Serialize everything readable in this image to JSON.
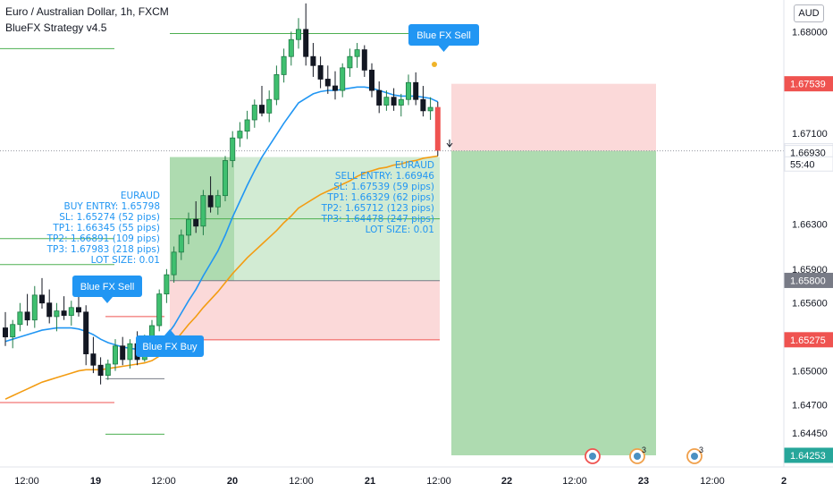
{
  "header": {
    "symbol_line": "Euro / Australian Dollar, 1h, FXCM",
    "strategy_line": "BlueFX Strategy v4.5"
  },
  "currency_badge": "AUD",
  "colors": {
    "bull": "#26a69a",
    "bear": "#ef5350",
    "bull_fill": "#26a69a",
    "ema_fast": "#2196f3",
    "ema_slow": "#f39c12",
    "signal_blue": "#2196f3",
    "tp_green": "#4caf50",
    "sl_red": "#ef5350",
    "zone_green": "rgba(76,175,80,0.35)",
    "zone_red": "rgba(239,83,80,0.22)",
    "text_blue": "#2196f3"
  },
  "chart_data": {
    "type": "candlestick",
    "ylim": [
      1.6415,
      1.6828
    ],
    "y_ticks": [
      "1.68000",
      "1.67100",
      "1.66300",
      "1.65900",
      "1.65600",
      "1.65000",
      "1.64700",
      "1.64450"
    ],
    "x_ticks": [
      "12:00",
      "19",
      "12:00",
      "20",
      "12:00",
      "21",
      "12:00",
      "22",
      "12:00",
      "23",
      "12:00",
      "2"
    ],
    "price_tags": [
      {
        "label": "1.67539",
        "value": 1.67539,
        "color": "#ef5350"
      },
      {
        "label": "1.66946",
        "value": 1.66946,
        "color": "#131722",
        "background": "#ffffff"
      },
      {
        "label": "1.66930",
        "value": 1.6693,
        "color": "#131722",
        "background": "#ffffff"
      },
      {
        "label": "55:40",
        "value": 1.6683,
        "color": "#131722",
        "background": "#ffffff"
      },
      {
        "label": "1.65800",
        "value": 1.658,
        "color": "#787b86"
      },
      {
        "label": "1.65275",
        "value": 1.65275,
        "color": "#ef5350"
      },
      {
        "label": "1.64253",
        "value": 1.64253,
        "color": "#26a69a"
      }
    ],
    "candles": [
      [
        1.6538,
        1.6552,
        1.6522,
        1.653
      ],
      [
        1.653,
        1.6545,
        1.652,
        1.6541
      ],
      [
        1.6541,
        1.656,
        1.6535,
        1.6552
      ],
      [
        1.6552,
        1.6568,
        1.654,
        1.6545
      ],
      [
        1.6545,
        1.6575,
        1.6538,
        1.6567
      ],
      [
        1.6567,
        1.6582,
        1.6555,
        1.656
      ],
      [
        1.656,
        1.6572,
        1.6542,
        1.6548
      ],
      [
        1.6548,
        1.656,
        1.6535,
        1.6553
      ],
      [
        1.6553,
        1.6566,
        1.6545,
        1.6549
      ],
      [
        1.6549,
        1.6562,
        1.654,
        1.6556
      ],
      [
        1.6556,
        1.657,
        1.6548,
        1.6552
      ],
      [
        1.6552,
        1.6558,
        1.6505,
        1.6515
      ],
      [
        1.6515,
        1.653,
        1.6498,
        1.6505
      ],
      [
        1.6505,
        1.6512,
        1.6488,
        1.6496
      ],
      [
        1.6496,
        1.651,
        1.6492,
        1.6506
      ],
      [
        1.6506,
        1.6528,
        1.65,
        1.6522
      ],
      [
        1.6522,
        1.653,
        1.6505,
        1.651
      ],
      [
        1.651,
        1.6528,
        1.6502,
        1.6524
      ],
      [
        1.6524,
        1.6535,
        1.6505,
        1.651
      ],
      [
        1.651,
        1.6532,
        1.6508,
        1.6528
      ],
      [
        1.6528,
        1.6545,
        1.652,
        1.654
      ],
      [
        1.654,
        1.6572,
        1.6535,
        1.6568
      ],
      [
        1.6568,
        1.659,
        1.656,
        1.6585
      ],
      [
        1.6585,
        1.661,
        1.6578,
        1.6605
      ],
      [
        1.6605,
        1.6625,
        1.6598,
        1.662
      ],
      [
        1.662,
        1.664,
        1.6612,
        1.6634
      ],
      [
        1.6634,
        1.665,
        1.6622,
        1.6628
      ],
      [
        1.6628,
        1.666,
        1.662,
        1.6655
      ],
      [
        1.6655,
        1.6672,
        1.664,
        1.6645
      ],
      [
        1.6645,
        1.666,
        1.6638,
        1.6655
      ],
      [
        1.6655,
        1.669,
        1.665,
        1.6686
      ],
      [
        1.6686,
        1.6712,
        1.668,
        1.6706
      ],
      [
        1.6706,
        1.672,
        1.6698,
        1.6712
      ],
      [
        1.6712,
        1.673,
        1.6705,
        1.6722
      ],
      [
        1.6722,
        1.674,
        1.6715,
        1.6735
      ],
      [
        1.6735,
        1.6752,
        1.6725,
        1.6728
      ],
      [
        1.6728,
        1.6748,
        1.672,
        1.674
      ],
      [
        1.674,
        1.677,
        1.6735,
        1.6762
      ],
      [
        1.6762,
        1.6785,
        1.6755,
        1.6778
      ],
      [
        1.6778,
        1.68,
        1.677,
        1.6793
      ],
      [
        1.6793,
        1.6812,
        1.6785,
        1.6802
      ],
      [
        1.6802,
        1.6825,
        1.677,
        1.6778
      ],
      [
        1.6778,
        1.679,
        1.676,
        1.677
      ],
      [
        1.677,
        1.6778,
        1.675,
        1.6758
      ],
      [
        1.6758,
        1.677,
        1.6745,
        1.6752
      ],
      [
        1.6752,
        1.6765,
        1.674,
        1.6748
      ],
      [
        1.6748,
        1.6772,
        1.6742,
        1.6768
      ],
      [
        1.6768,
        1.6785,
        1.676,
        1.6778
      ],
      [
        1.6778,
        1.679,
        1.6768,
        1.6784
      ],
      [
        1.6784,
        1.6788,
        1.676,
        1.6766
      ],
      [
        1.6766,
        1.6772,
        1.6742,
        1.6748
      ],
      [
        1.6748,
        1.6756,
        1.6728,
        1.6735
      ],
      [
        1.6735,
        1.6748,
        1.673,
        1.6742
      ],
      [
        1.6742,
        1.675,
        1.673,
        1.6735
      ],
      [
        1.6735,
        1.6745,
        1.6725,
        1.674
      ],
      [
        1.674,
        1.6762,
        1.6735,
        1.6755
      ],
      [
        1.6755,
        1.6764,
        1.6735,
        1.674
      ],
      [
        1.674,
        1.6752,
        1.6725,
        1.673
      ],
      [
        1.673,
        1.6742,
        1.6722,
        1.6733
      ],
      [
        1.6733,
        1.6738,
        1.669,
        1.6695
      ]
    ],
    "ema_fast": [
      [
        1.6526,
        1.6528,
        1.653,
        1.6532,
        1.6534,
        1.6536,
        1.6537,
        1.6538,
        1.6538,
        1.6538,
        1.6537,
        1.6535,
        1.6532,
        1.6528,
        1.6525,
        1.6523,
        1.6521,
        1.652,
        1.6519,
        1.6519,
        1.6521,
        1.6525,
        1.6531,
        1.654,
        1.6551,
        1.6562,
        1.6572,
        1.6584,
        1.6595,
        1.6606,
        1.662,
        1.6636,
        1.665,
        1.6664,
        1.6677,
        1.6689,
        1.6699,
        1.6709,
        1.6719,
        1.6728,
        1.6737,
        1.6741,
        1.6745,
        1.6747,
        1.6748,
        1.6748,
        1.6749,
        1.675,
        1.6751,
        1.6751,
        1.675,
        1.6748,
        1.6746,
        1.6744,
        1.6743,
        1.6743,
        1.6743,
        1.6742,
        1.6741,
        1.6738
      ]
    ],
    "ema_slow": [
      [
        1.6475,
        1.6478,
        1.6481,
        1.6484,
        1.6487,
        1.649,
        1.6492,
        1.6494,
        1.6496,
        1.6498,
        1.65,
        1.6501,
        1.6501,
        1.6501,
        1.6502,
        1.6503,
        1.6504,
        1.6505,
        1.6506,
        1.6507,
        1.6509,
        1.6513,
        1.6518,
        1.6525,
        1.6533,
        1.6541,
        1.6548,
        1.6556,
        1.6563,
        1.657,
        1.6578,
        1.6586,
        1.6593,
        1.66,
        1.6606,
        1.6612,
        1.6618,
        1.6624,
        1.6631,
        1.6637,
        1.6644,
        1.6648,
        1.6652,
        1.6656,
        1.6659,
        1.6662,
        1.6665,
        1.6668,
        1.6672,
        1.6675,
        1.6677,
        1.6679,
        1.668,
        1.6682,
        1.6683,
        1.6685,
        1.6686,
        1.6688,
        1.6689,
        1.669
      ]
    ],
    "trades": [
      {
        "entry": 1.65798,
        "sl": 1.65274,
        "tp1": 1.66345,
        "tp2": 1.66891,
        "tp3": 1.67983,
        "text": [
          "EURAUD",
          "BUY ENTRY: 1.65798",
          "SL: 1.65274 (52 pips)",
          "TP1: 1.66345 (55 pips)",
          "TP2: 1.66891 (109 pips)",
          "TP3: 1.67983 (218 pips)",
          "LOT SIZE: 0.01"
        ]
      },
      {
        "entry": 1.66946,
        "sl": 1.67539,
        "tp1": 1.66329,
        "tp2": 1.65712,
        "tp3": 1.64478,
        "zone_bottom": 1.64253,
        "text": [
          "EURAUD",
          "SELL ENTRY: 1.66946",
          "SL: 1.67539 (59 pips)",
          "TP1: 1.66329 (62 pips)",
          "TP2: 1.65712 (123 pips)",
          "TP3: 1.64478 (247 pips)",
          "LOT SIZE: 0.01"
        ]
      }
    ],
    "signals": [
      {
        "label": "Blue FX Sell"
      },
      {
        "label": "Blue FX Buy"
      },
      {
        "label": "Blue FX Sell"
      }
    ],
    "event_icons": [
      {
        "type": "flag-icon"
      },
      {
        "type": "earnings-icon",
        "badge": "3"
      },
      {
        "type": "earnings-icon",
        "badge": "3"
      }
    ]
  }
}
